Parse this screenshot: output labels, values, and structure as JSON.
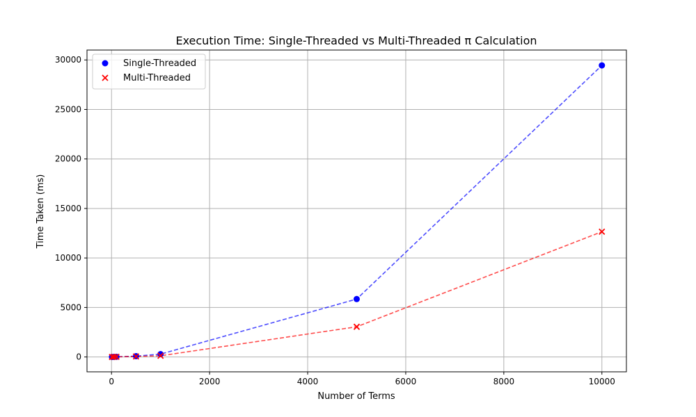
{
  "chart_data": {
    "type": "scatter",
    "title": "Execution Time: Single-Threaded vs Multi-Threaded π Calculation",
    "xlabel": "Number of Terms",
    "ylabel": "Time Taken (ms)",
    "xlim": [
      -500,
      10500
    ],
    "ylim": [
      -1500,
      31000
    ],
    "xticks": [
      0,
      2000,
      4000,
      6000,
      8000,
      10000
    ],
    "yticks": [
      0,
      5000,
      10000,
      15000,
      20000,
      25000,
      30000
    ],
    "grid": true,
    "legend_position": "top-left",
    "series": [
      {
        "name": "Single-Threaded",
        "color": "#0000ff",
        "marker": "circle",
        "line_style": "dashed",
        "x": [
          10,
          50,
          100,
          500,
          1000,
          5000,
          10000
        ],
        "y": [
          2,
          8,
          20,
          80,
          290,
          5850,
          29450
        ]
      },
      {
        "name": "Multi-Threaded",
        "color": "#ff0000",
        "marker": "x",
        "line_style": "dashed",
        "x": [
          10,
          50,
          100,
          500,
          1000,
          5000,
          10000
        ],
        "y": [
          2,
          6,
          15,
          50,
          120,
          3050,
          12650
        ]
      }
    ]
  }
}
